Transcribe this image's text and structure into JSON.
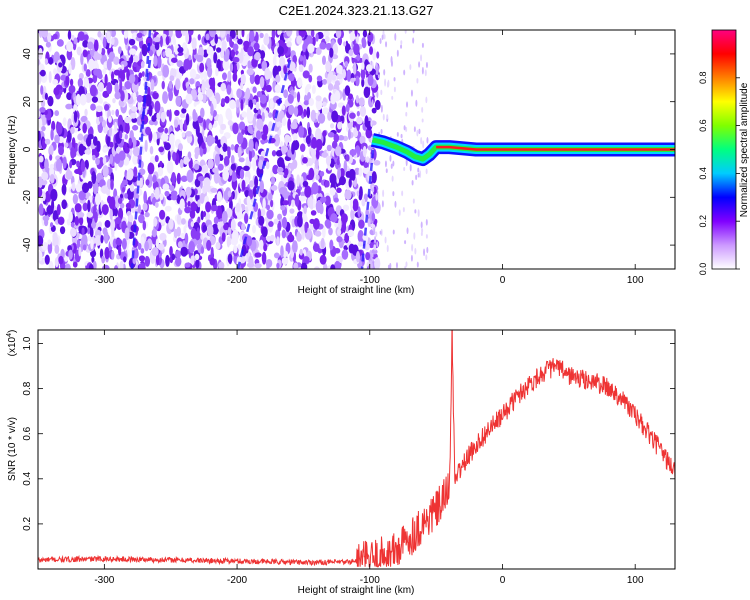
{
  "title": "C2E1.2024.323.21.13.G27",
  "chart_data": [
    {
      "type": "heatmap",
      "title": "C2E1.2024.323.21.13.G27",
      "xlabel": "Height of straight line (km)",
      "ylabel": "Frequency (Hz)",
      "xlim": [
        -350,
        130
      ],
      "ylim": [
        -50,
        50
      ],
      "xticks": [
        -300,
        -200,
        -100,
        0,
        100
      ],
      "xtick_labels": [
        "-300",
        "-200",
        "-100",
        "0",
        "100"
      ],
      "yticks": [
        -40,
        -20,
        0,
        20,
        40
      ],
      "ytick_labels": [
        "-40",
        "-20",
        "0",
        "20",
        "40"
      ],
      "colorbar": {
        "label": "Normalized spectral amplitude",
        "range": [
          0,
          1
        ],
        "ticks": [
          0.0,
          0.2,
          0.4,
          0.6,
          0.8
        ],
        "tick_labels": [
          "0.0",
          "0.2",
          "0.4",
          "0.6",
          "0.8"
        ],
        "colors": [
          "#ffffff",
          "#cc99ff",
          "#8000ff",
          "#0000ff",
          "#00ccff",
          "#00ff80",
          "#80ff00",
          "#ffff00",
          "#ff8000",
          "#ff0000",
          "#ff0080"
        ]
      },
      "noise_region_x": [
        -350,
        -100
      ],
      "signal_track": [
        {
          "x": -98,
          "y": 4
        },
        {
          "x": -90,
          "y": 3
        },
        {
          "x": -80,
          "y": 1
        },
        {
          "x": -72,
          "y": -1
        },
        {
          "x": -66,
          "y": -3
        },
        {
          "x": -60,
          "y": -4
        },
        {
          "x": -55,
          "y": -2
        },
        {
          "x": -50,
          "y": 1
        },
        {
          "x": -40,
          "y": 1
        },
        {
          "x": -20,
          "y": 0
        },
        {
          "x": 0,
          "y": 0
        },
        {
          "x": 130,
          "y": 0
        }
      ]
    },
    {
      "type": "line",
      "xlabel": "Height of straight line (km)",
      "ylabel": "SNR (10 * v/v)",
      "y_multiplier_label": "(x10",
      "y_multiplier_exp": "4",
      "xlim": [
        -350,
        130
      ],
      "ylim": [
        0,
        1.06
      ],
      "xticks": [
        -300,
        -200,
        -100,
        0,
        100
      ],
      "xtick_labels": [
        "-300",
        "-200",
        "-100",
        "0",
        "100"
      ],
      "yticks": [
        0.2,
        0.4,
        0.6,
        0.8,
        1.0
      ],
      "ytick_labels": [
        "0.2",
        "0.4",
        "0.6",
        "0.8",
        "1.0"
      ],
      "series": [
        {
          "color": "#ee3333",
          "x": [
            -350,
            -300,
            -250,
            -200,
            -150,
            -120,
            -100,
            -80,
            -70,
            -60,
            -50,
            -45,
            -40,
            -38,
            -36,
            -30,
            -20,
            -10,
            0,
            10,
            20,
            30,
            40,
            50,
            60,
            70,
            80,
            90,
            100,
            110,
            120,
            130
          ],
          "y": [
            0.04,
            0.045,
            0.04,
            0.035,
            0.03,
            0.03,
            0.04,
            0.08,
            0.14,
            0.2,
            0.26,
            0.3,
            0.36,
            1.05,
            0.4,
            0.46,
            0.55,
            0.62,
            0.68,
            0.76,
            0.82,
            0.87,
            0.9,
            0.86,
            0.84,
            0.83,
            0.8,
            0.76,
            0.68,
            0.6,
            0.52,
            0.43
          ]
        }
      ]
    }
  ]
}
